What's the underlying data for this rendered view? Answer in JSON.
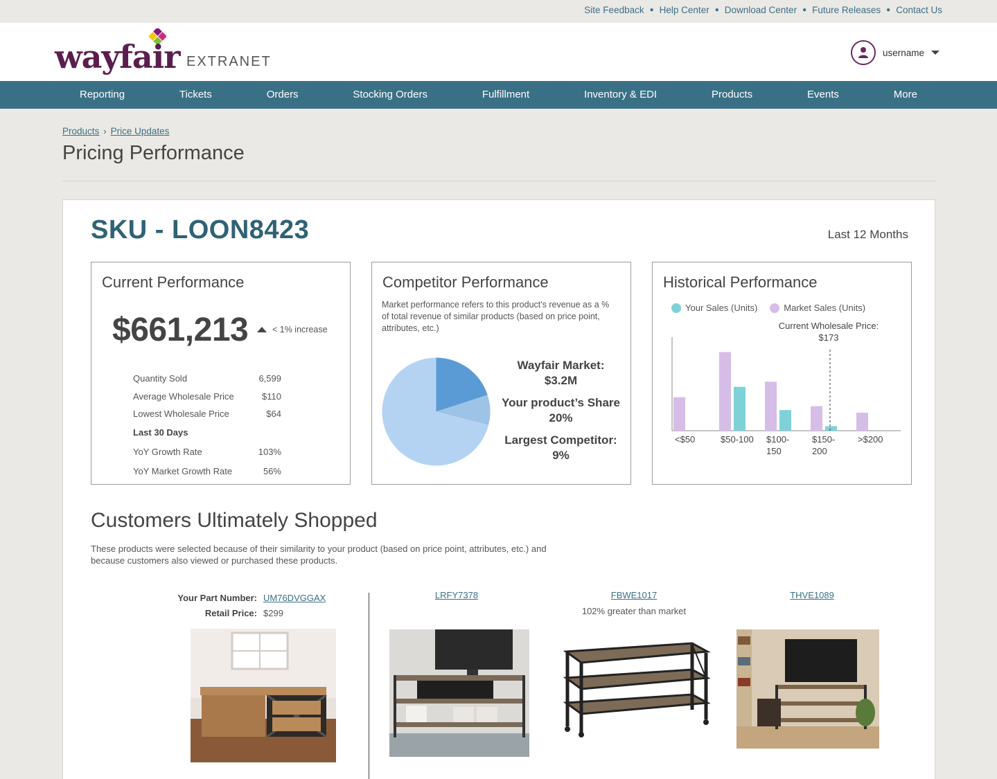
{
  "utility_links": [
    "Site Feedback",
    "Help Center",
    "Download Center",
    "Future Releases",
    "Contact Us"
  ],
  "brand": {
    "word": "wayfair",
    "suffix": "EXTRANET"
  },
  "user": {
    "name": "username"
  },
  "nav": [
    "Reporting",
    "Tickets",
    "Orders",
    "Stocking Orders",
    "Fulfillment",
    "Inventory & EDI",
    "Products",
    "Events",
    "More"
  ],
  "breadcrumb": {
    "parent": "Products",
    "current": "Price Updates",
    "separator": "›"
  },
  "page_title": "Pricing Performance",
  "sku_title": "SKU - LOON8423",
  "period": "Last 12 Months",
  "current_performance": {
    "title": "Current Performance",
    "revenue": "$661,213",
    "change": "< 1% increase",
    "stats": [
      {
        "label": "Quantity Sold",
        "value": "6,599"
      },
      {
        "label": "Average Wholesale Price",
        "value": "$110"
      },
      {
        "label": "Lowest Wholesale Price",
        "value": "$64"
      }
    ],
    "last30_heading": "Last 30 Days",
    "last30": [
      {
        "label": "YoY Growth Rate",
        "value": "103%"
      },
      {
        "label": "YoY Market Growth Rate",
        "value": "56%"
      }
    ]
  },
  "competitor_performance": {
    "title": "Competitor Performance",
    "description": "Market performance refers to this product's revenue as a % of total revenue of similar products (based on price point, attributes, etc.)",
    "market_label": "Wayfair Market:",
    "market_value": "$3.2M",
    "share_label": "Your product’s Share",
    "share_value": "20%",
    "competitor_label": "Largest Competitor:",
    "competitor_value": "9%",
    "pie": {
      "share": 20,
      "competitor": 9,
      "colors": {
        "share": "#5b9bd5",
        "competitor": "#9dc3e6",
        "rest": "#b4d3f3"
      }
    }
  },
  "historical_performance": {
    "title": "Historical Performance",
    "legend": [
      {
        "name": "Your Sales (Units)",
        "color": "#7fd1d8"
      },
      {
        "name": "Market Sales (Units)",
        "color": "#d6bde8"
      }
    ],
    "marker_label": "Current Wholesale Price:",
    "marker_value": "$173"
  },
  "chart_data": {
    "type": "bar",
    "categories": [
      "<$50",
      "$50-100",
      "$100-150",
      "$150-200",
      ">$200"
    ],
    "series": [
      {
        "name": "Market Sales (Units)",
        "values": [
          52,
          122,
          76,
          38,
          28
        ]
      },
      {
        "name": "Your Sales (Units)",
        "values": [
          0,
          68,
          32,
          7,
          0
        ]
      }
    ],
    "ylim": [
      0,
      145
    ],
    "marker": {
      "label": "Current Wholesale Price: $173",
      "position": 173
    },
    "colors": {
      "market": "#d6bde8",
      "yours": "#7fd1d8"
    }
  },
  "customers": {
    "title": "Customers Ultimately Shopped",
    "description": "These products were selected because of their similarity to your product (based on price point, attributes, etc.) and because customers also viewed or purchased these products.",
    "part_label": "Your Part Number:",
    "part_number": "UM76DVGGAX",
    "retail_label": "Retail Price:",
    "retail_price": "$299",
    "competitors": [
      {
        "sku": "LRFY7378",
        "note": ""
      },
      {
        "sku": "FBWE1017",
        "note": "102% greater than market"
      },
      {
        "sku": "THVE1089",
        "note": ""
      }
    ]
  }
}
